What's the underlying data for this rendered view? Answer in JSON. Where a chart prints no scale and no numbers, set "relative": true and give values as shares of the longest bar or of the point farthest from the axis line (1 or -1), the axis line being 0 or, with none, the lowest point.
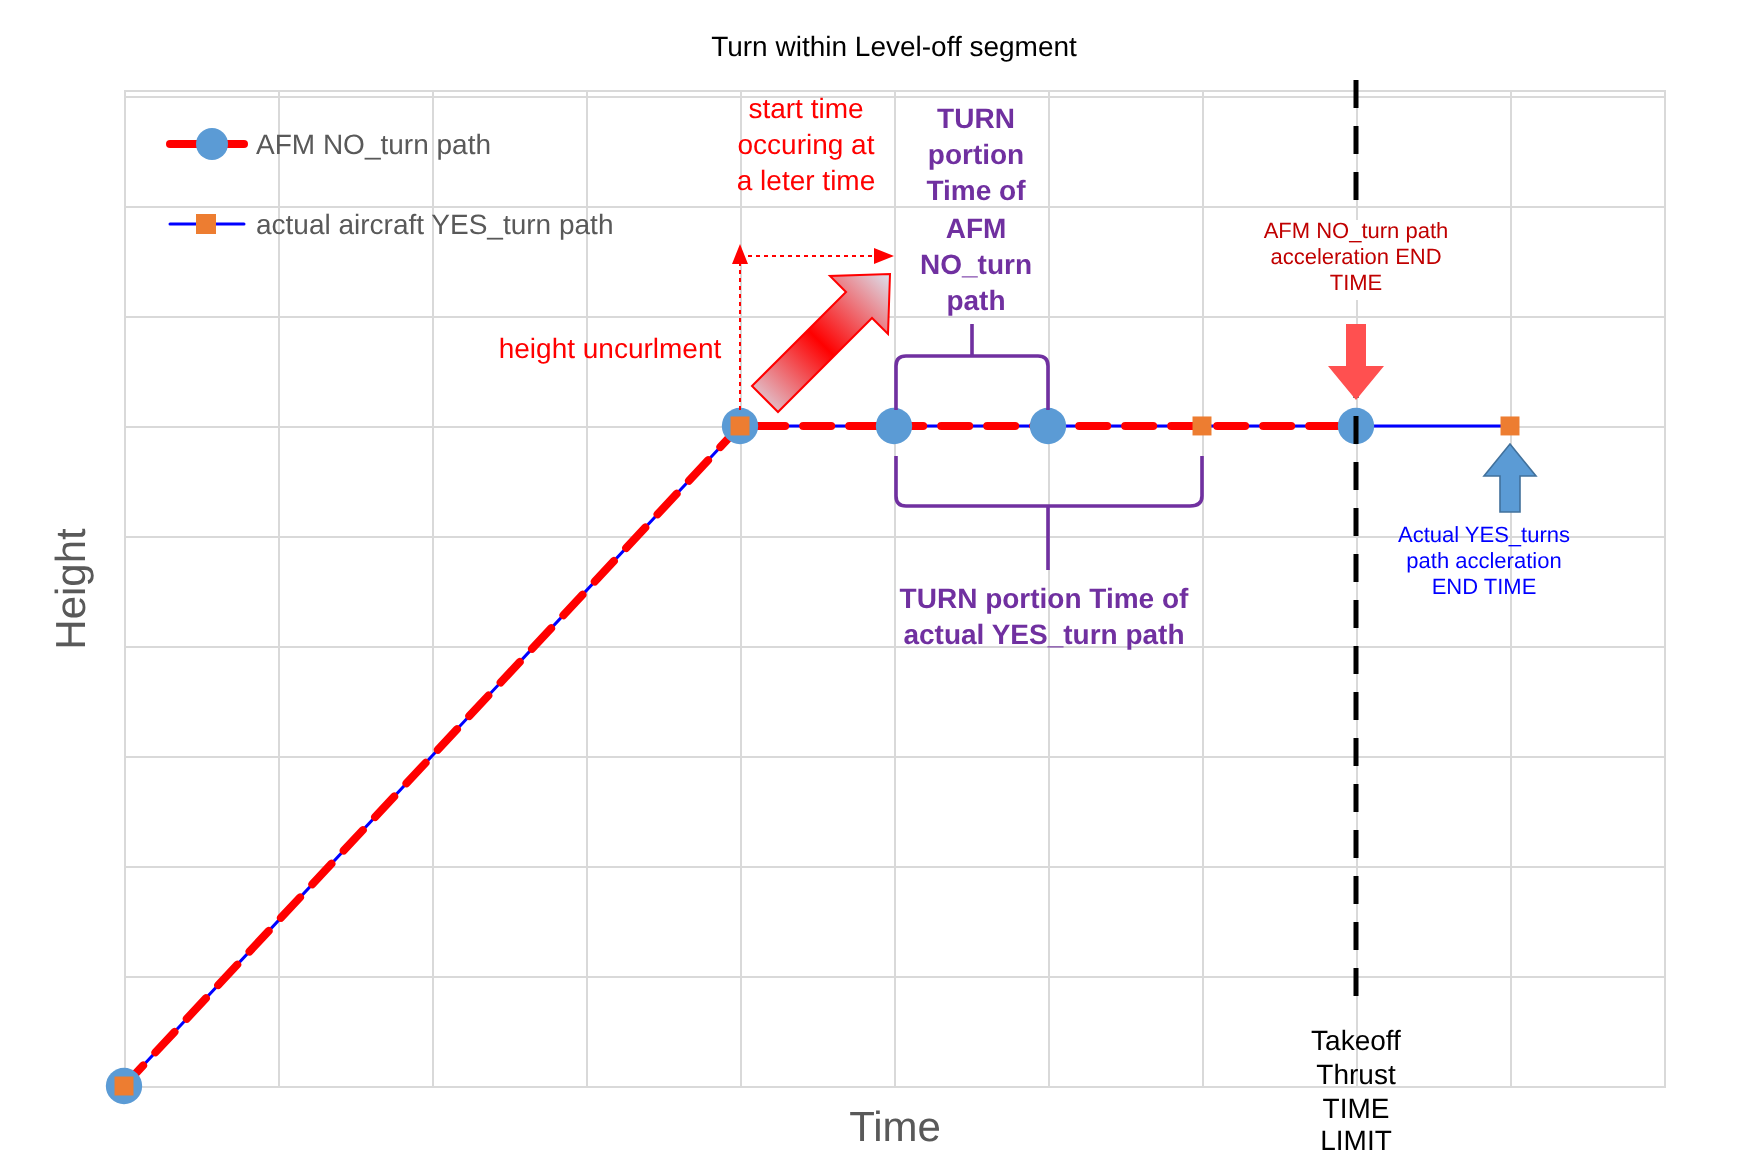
{
  "chart_data": {
    "type": "line",
    "title": "Turn within Level-off segment",
    "xlabel": "Time",
    "ylabel": "Height",
    "relative": true,
    "grid": true,
    "legend": "top left",
    "categories": [
      null,
      null,
      null,
      null,
      null,
      null,
      null,
      null,
      null,
      null,
      null
    ],
    "series": [
      {
        "name": "AFM NO_turn path",
        "color": "#ff0000",
        "line_style": "dashed",
        "marker": "circle",
        "values": [
          0,
          null,
          null,
          null,
          1,
          1,
          1,
          null,
          1,
          null,
          null
        ],
        "colors": [
          "#5b9bd5",
          null,
          null,
          null,
          "#5b9bd5",
          "#5b9bd5",
          "#5b9bd5",
          null,
          "#5b9bd5",
          null,
          null
        ]
      },
      {
        "name": "actual aircraft YES_turn path",
        "color": "#0000ff",
        "line_style": "solid",
        "marker": "square",
        "values": [
          0,
          null,
          null,
          null,
          1,
          null,
          null,
          1,
          null,
          1,
          null
        ],
        "colors": [
          "#ed7d31",
          null,
          null,
          null,
          "#ed7d31",
          null,
          null,
          "#ed7d31",
          null,
          "#ed7d31",
          null
        ]
      }
    ],
    "annotations": [
      "start time occuring at a leter time",
      "TURN portion Time of AFM NO_turn path",
      "height uncurlment",
      "AFM NO_turn path acceleration END TIME",
      "TURN portion Time of actual YES_turn path",
      "Actual YES_turns path accleration END TIME",
      "Takeoff Thrust TIME LIMIT"
    ]
  }
}
